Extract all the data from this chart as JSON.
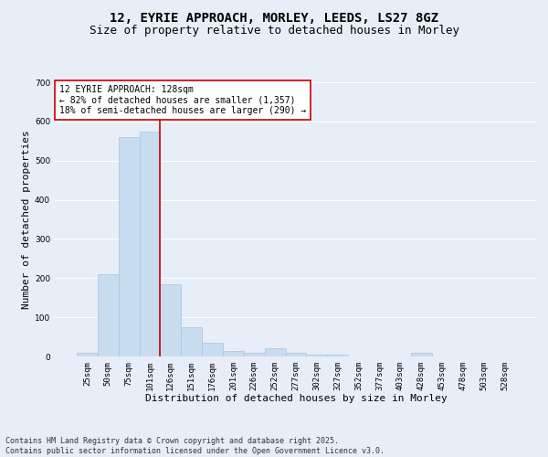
{
  "title_line1": "12, EYRIE APPROACH, MORLEY, LEEDS, LS27 8GZ",
  "title_line2": "Size of property relative to detached houses in Morley",
  "xlabel": "Distribution of detached houses by size in Morley",
  "ylabel": "Number of detached properties",
  "categories": [
    "25sqm",
    "50sqm",
    "75sqm",
    "101sqm",
    "126sqm",
    "151sqm",
    "176sqm",
    "201sqm",
    "226sqm",
    "252sqm",
    "277sqm",
    "302sqm",
    "327sqm",
    "352sqm",
    "377sqm",
    "403sqm",
    "428sqm",
    "453sqm",
    "478sqm",
    "503sqm",
    "528sqm"
  ],
  "values": [
    10,
    210,
    560,
    575,
    185,
    75,
    35,
    15,
    10,
    20,
    10,
    5,
    5,
    0,
    0,
    0,
    10,
    0,
    0,
    0,
    0
  ],
  "bar_color": "#c8dcf0",
  "bar_edge_color": "#a8c4dc",
  "vline_color": "#cc0000",
  "annotation_text": "12 EYRIE APPROACH: 128sqm\n← 82% of detached houses are smaller (1,357)\n18% of semi-detached houses are larger (290) →",
  "annotation_box_color": "#ffffff",
  "annotation_box_edge": "#cc0000",
  "ylim": [
    0,
    700
  ],
  "yticks": [
    0,
    100,
    200,
    300,
    400,
    500,
    600,
    700
  ],
  "footer": "Contains HM Land Registry data © Crown copyright and database right 2025.\nContains public sector information licensed under the Open Government Licence v3.0.",
  "background_color": "#e8eef8",
  "plot_background_color": "#e8eef8",
  "grid_color": "#ffffff",
  "title_fontsize": 10,
  "subtitle_fontsize": 9,
  "axis_label_fontsize": 8,
  "tick_fontsize": 6.5,
  "annotation_fontsize": 7,
  "footer_fontsize": 6
}
